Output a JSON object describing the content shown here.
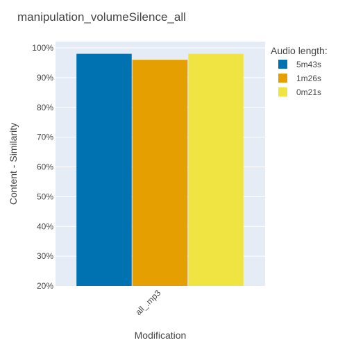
{
  "chart_data": {
    "type": "bar",
    "title": "manipulation_volumeSilence_all",
    "xlabel": "Modification",
    "ylabel": "Content - Similarity",
    "categories": [
      "all_.mp3"
    ],
    "ylim": [
      0.2,
      1.0
    ],
    "yticks": [
      "20%",
      "30%",
      "40%",
      "50%",
      "60%",
      "70%",
      "80%",
      "90%",
      "100%"
    ],
    "grid": true,
    "legend_title": "Audio length:",
    "legend_position": "right",
    "series": [
      {
        "name": "5m43s",
        "color": "#0072b2",
        "values": [
          0.98
        ]
      },
      {
        "name": "1m26s",
        "color": "#e69f00",
        "values": [
          0.96
        ]
      },
      {
        "name": "0m21s",
        "color": "#f0e442",
        "values": [
          0.98
        ]
      }
    ]
  },
  "colors": {
    "plot_background": "#e5ecf6",
    "gridline": "#ffffff"
  }
}
